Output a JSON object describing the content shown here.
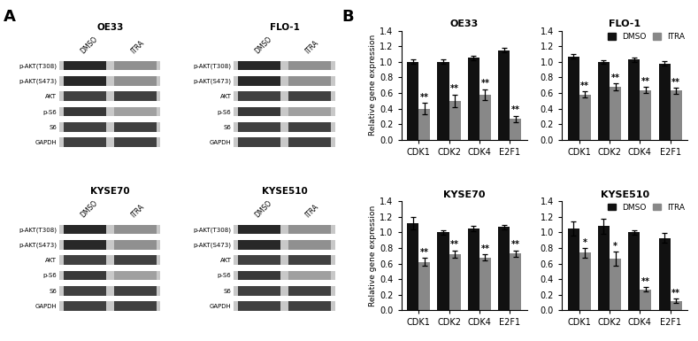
{
  "chart_data": [
    {
      "type": "blot",
      "title": "OE33",
      "annotations": [
        "A"
      ],
      "categories": [
        "p-AKT(T308)",
        "p-AKT(S473)",
        "AKT",
        "p-S6",
        "S6",
        "GAPDH"
      ],
      "color": "#c8c8c8",
      "series": [
        {
          "name": "DMSO",
          "colors": [
            "#282828",
            "#282828",
            "#404040",
            "#383838",
            "#404040",
            "#404040"
          ]
        },
        {
          "name": "ITRA",
          "colors": [
            "#909090",
            "#909090",
            "#404040",
            "#a0a0a0",
            "#404040",
            "#404040"
          ]
        }
      ]
    },
    {
      "type": "blot",
      "title": "FLO-1",
      "categories": [
        "p-AKT(T308)",
        "p-AKT(S473)",
        "AKT",
        "p-S6",
        "S6",
        "GAPDH"
      ],
      "color": "#c8c8c8",
      "series": [
        {
          "name": "DMSO",
          "colors": [
            "#282828",
            "#282828",
            "#404040",
            "#383838",
            "#404040",
            "#404040"
          ]
        },
        {
          "name": "ITRA",
          "colors": [
            "#909090",
            "#909090",
            "#404040",
            "#a0a0a0",
            "#404040",
            "#404040"
          ]
        }
      ]
    },
    {
      "type": "blot",
      "title": "KYSE70",
      "categories": [
        "p-AKT(T308)",
        "p-AKT(S473)",
        "AKT",
        "p-S6",
        "S6",
        "GAPDH"
      ],
      "color": "#c8c8c8",
      "series": [
        {
          "name": "DMSO",
          "colors": [
            "#282828",
            "#282828",
            "#404040",
            "#383838",
            "#404040",
            "#404040"
          ]
        },
        {
          "name": "ITRA",
          "colors": [
            "#909090",
            "#909090",
            "#404040",
            "#a0a0a0",
            "#404040",
            "#404040"
          ]
        }
      ]
    },
    {
      "type": "blot",
      "title": "KYSE510",
      "categories": [
        "p-AKT(T308)",
        "p-AKT(S473)",
        "AKT",
        "p-S6",
        "S6",
        "GAPDH"
      ],
      "color": "#c8c8c8",
      "series": [
        {
          "name": "DMSO",
          "colors": [
            "#282828",
            "#282828",
            "#404040",
            "#383838",
            "#404040",
            "#404040"
          ]
        },
        {
          "name": "ITRA",
          "colors": [
            "#909090",
            "#909090",
            "#404040",
            "#a0a0a0",
            "#404040",
            "#404040"
          ]
        }
      ]
    },
    {
      "type": "bar",
      "title": "OE33",
      "annotations": [
        "B"
      ],
      "categories": [
        "CDK1",
        "CDK2",
        "CDK4",
        "E2F1"
      ],
      "ylabel": "Relative gene expression",
      "series": [
        {
          "name": "DMSO",
          "color": "#111111",
          "values": [
            1.0,
            1.0,
            1.05,
            1.15
          ],
          "errors": [
            0.03,
            0.03,
            0.03,
            0.03
          ]
        },
        {
          "name": "ITRA",
          "color": "#888888",
          "values": [
            0.4,
            0.5,
            0.58,
            0.27
          ],
          "errors": [
            0.07,
            0.08,
            0.07,
            0.04
          ],
          "significance": [
            "**",
            "**",
            "**",
            "**"
          ]
        }
      ],
      "ylim": [
        0,
        1.4
      ],
      "yticks": [
        {
          "value": 0,
          "label": "0.0"
        },
        0.2,
        0.4,
        0.6,
        0.8,
        {
          "value": 1,
          "label": "1.0"
        },
        1.2,
        1.4
      ]
    },
    {
      "type": "bar",
      "title": "FLO-1",
      "categories": [
        "CDK1",
        "CDK2",
        "CDK4",
        "E2F1"
      ],
      "series": [
        {
          "name": "DMSO",
          "color": "#111111",
          "values": [
            1.07,
            1.0,
            1.03,
            0.98
          ],
          "errors": [
            0.03,
            0.02,
            0.03,
            0.03
          ]
        },
        {
          "name": "ITRA",
          "color": "#888888",
          "values": [
            0.58,
            0.68,
            0.64,
            0.63
          ],
          "errors": [
            0.04,
            0.04,
            0.04,
            0.04
          ],
          "significance": [
            "**",
            "**",
            "**",
            "**"
          ]
        }
      ],
      "ylim": [
        0,
        1.4
      ],
      "yticks": [
        {
          "value": 0,
          "label": "0.0"
        },
        0.2,
        0.4,
        0.6,
        0.8,
        {
          "value": 1,
          "label": "1.0"
        },
        1.2,
        1.4
      ],
      "legend": "upper right"
    },
    {
      "type": "bar",
      "title": "KYSE70",
      "categories": [
        "CDK1",
        "CDK2",
        "CDK4",
        "E2F1"
      ],
      "ylabel": "Relative gene expression",
      "series": [
        {
          "name": "DMSO",
          "color": "#111111",
          "values": [
            1.12,
            1.0,
            1.05,
            1.07
          ],
          "errors": [
            0.08,
            0.03,
            0.03,
            0.03
          ]
        },
        {
          "name": "ITRA",
          "color": "#888888",
          "values": [
            0.62,
            0.72,
            0.68,
            0.73
          ],
          "errors": [
            0.05,
            0.05,
            0.04,
            0.04
          ],
          "significance": [
            "**",
            "**",
            "**",
            "**"
          ]
        }
      ],
      "ylim": [
        0,
        1.4
      ],
      "yticks": [
        {
          "value": 0,
          "label": "0.0"
        },
        0.2,
        0.4,
        0.6,
        0.8,
        {
          "value": 1,
          "label": "1.0"
        },
        1.2,
        1.4
      ]
    },
    {
      "type": "bar",
      "title": "KYSE510",
      "categories": [
        "CDK1",
        "CDK2",
        "CDK4",
        "E2F1"
      ],
      "series": [
        {
          "name": "DMSO",
          "color": "#111111",
          "values": [
            1.05,
            1.08,
            1.0,
            0.93
          ],
          "errors": [
            0.09,
            0.1,
            0.03,
            0.06
          ]
        },
        {
          "name": "ITRA",
          "color": "#888888",
          "values": [
            0.74,
            0.66,
            0.27,
            0.12
          ],
          "errors": [
            0.06,
            0.09,
            0.03,
            0.03
          ],
          "significance": [
            "*",
            "*",
            "**",
            "**"
          ]
        }
      ],
      "ylim": [
        0,
        1.4
      ],
      "yticks": [
        {
          "value": 0,
          "label": "0.0"
        },
        0.2,
        0.4,
        0.6,
        0.8,
        {
          "value": 1,
          "label": "1.0"
        },
        1.2,
        1.4
      ],
      "legend": "upper right"
    }
  ]
}
